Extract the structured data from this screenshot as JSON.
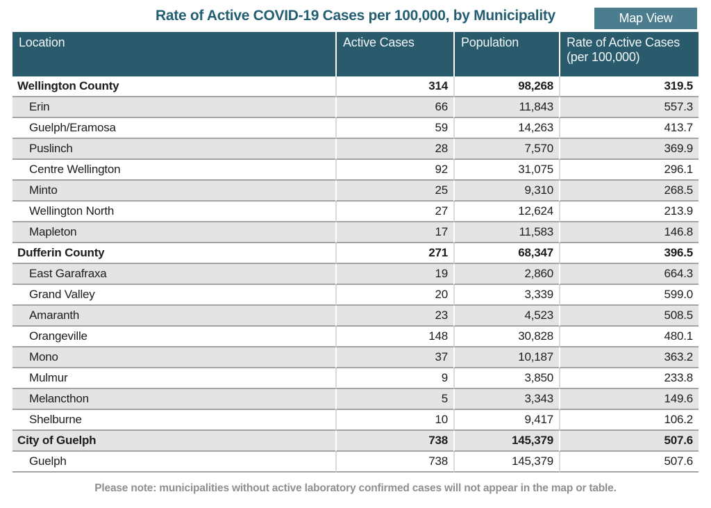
{
  "title": "Rate of Active COVID-19 Cases per 100,000, by Municipality",
  "map_view_button_label": "Map View",
  "footnote": "Please note: municipalities without active laboratory confirmed cases will not appear in the map or table.",
  "colors": {
    "header_bg": "#2A5B6C",
    "button_bg": "#4C7D8E",
    "title_text": "#235E72",
    "row_alt_bg": "#E4E4E4",
    "row_border": "#A4A4A4",
    "body_text": "#1C1C1C",
    "footnote_text": "#8F8F8F"
  },
  "table": {
    "columns": [
      {
        "label": "Location"
      },
      {
        "label": "Active Cases"
      },
      {
        "label": "Population"
      },
      {
        "label": "Rate of Active Cases (per 100,000)"
      }
    ],
    "rows": [
      {
        "location": "Wellington County",
        "active_cases": "314",
        "population": "98,268",
        "rate": "319.5",
        "group": true
      },
      {
        "location": "Erin",
        "active_cases": "66",
        "population": "11,843",
        "rate": "557.3",
        "group": false
      },
      {
        "location": "Guelph/Eramosa",
        "active_cases": "59",
        "population": "14,263",
        "rate": "413.7",
        "group": false
      },
      {
        "location": "Puslinch",
        "active_cases": "28",
        "population": "7,570",
        "rate": "369.9",
        "group": false
      },
      {
        "location": "Centre Wellington",
        "active_cases": "92",
        "population": "31,075",
        "rate": "296.1",
        "group": false
      },
      {
        "location": "Minto",
        "active_cases": "25",
        "population": "9,310",
        "rate": "268.5",
        "group": false
      },
      {
        "location": "Wellington North",
        "active_cases": "27",
        "population": "12,624",
        "rate": "213.9",
        "group": false
      },
      {
        "location": "Mapleton",
        "active_cases": "17",
        "population": "11,583",
        "rate": "146.8",
        "group": false
      },
      {
        "location": "Dufferin County",
        "active_cases": "271",
        "population": "68,347",
        "rate": "396.5",
        "group": true
      },
      {
        "location": "East Garafraxa",
        "active_cases": "19",
        "population": "2,860",
        "rate": "664.3",
        "group": false
      },
      {
        "location": "Grand Valley",
        "active_cases": "20",
        "population": "3,339",
        "rate": "599.0",
        "group": false
      },
      {
        "location": "Amaranth",
        "active_cases": "23",
        "population": "4,523",
        "rate": "508.5",
        "group": false
      },
      {
        "location": "Orangeville",
        "active_cases": "148",
        "population": "30,828",
        "rate": "480.1",
        "group": false
      },
      {
        "location": "Mono",
        "active_cases": "37",
        "population": "10,187",
        "rate": "363.2",
        "group": false
      },
      {
        "location": "Mulmur",
        "active_cases": "9",
        "population": "3,850",
        "rate": "233.8",
        "group": false
      },
      {
        "location": "Melancthon",
        "active_cases": "5",
        "population": "3,343",
        "rate": "149.6",
        "group": false
      },
      {
        "location": "Shelburne",
        "active_cases": "10",
        "population": "9,417",
        "rate": "106.2",
        "group": false
      },
      {
        "location": "City of Guelph",
        "active_cases": "738",
        "population": "145,379",
        "rate": "507.6",
        "group": true
      },
      {
        "location": "Guelph",
        "active_cases": "738",
        "population": "145,379",
        "rate": "507.6",
        "group": false
      }
    ]
  }
}
